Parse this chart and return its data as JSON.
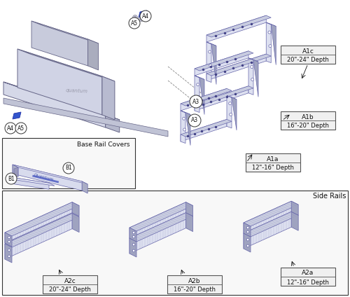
{
  "bg_color": "#ffffff",
  "part_fill_light": "#dde0f0",
  "part_fill_med": "#c8cce0",
  "part_fill_dark": "#9fa3c0",
  "part_edge": "#6666aa",
  "part_edge_dark": "#444488",
  "text_color": "#111111",
  "box_fill": "#f0f0f0",
  "section_labels": {
    "base_rail_covers": "Base Rail Covers",
    "side_rails": "Side Rails"
  },
  "labels": {
    "A1c": [
      "A1c",
      "20\"-24\" Depth"
    ],
    "A1b": [
      "A1b",
      "16\"-20\" Depth"
    ],
    "A1a": [
      "A1a",
      "12\"-16\" Depth"
    ],
    "A2c": [
      "A2c",
      "20\"-24\" Depth"
    ],
    "A2b": [
      "A2b",
      "16\"-20\" Depth"
    ],
    "A2a": [
      "A2a",
      "12\"-16\" Depth"
    ]
  }
}
